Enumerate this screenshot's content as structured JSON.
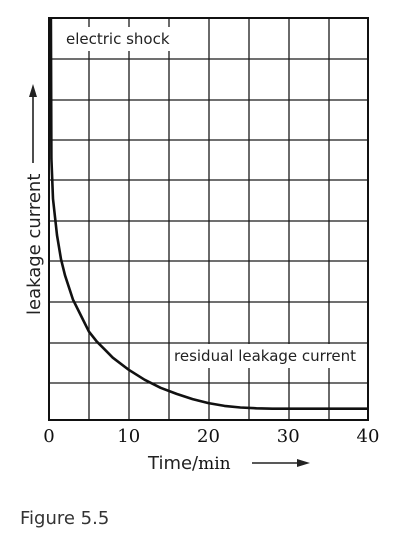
{
  "figure_caption": "Figure 5.5",
  "chart_data": {
    "type": "line",
    "xlabel": "Time/",
    "xlabel_unit": "min",
    "ylabel": "leakage current",
    "xlim": [
      0,
      40
    ],
    "x_ticks": [
      {
        "value": 0,
        "label": "0"
      },
      {
        "value": 10,
        "label": "10"
      },
      {
        "value": 20,
        "label": "20"
      },
      {
        "value": 30,
        "label": "30"
      },
      {
        "value": 40,
        "label": "40"
      }
    ],
    "grid": true,
    "annotations": {
      "top": "electric shock",
      "residual": "residual leakage current"
    },
    "series": [
      {
        "x": [
          0.3,
          0.5,
          1,
          1.5,
          2,
          3,
          4,
          5,
          6,
          7,
          8,
          10,
          12,
          14,
          16,
          18,
          20,
          22,
          24,
          26,
          28,
          30,
          32,
          34,
          36,
          38,
          40
        ],
        "y": [
          0.65,
          0.55,
          0.46,
          0.4,
          0.36,
          0.3,
          0.26,
          0.22,
          0.195,
          0.175,
          0.155,
          0.125,
          0.1,
          0.08,
          0.065,
          0.052,
          0.042,
          0.035,
          0.031,
          0.029,
          0.028,
          0.028,
          0.028,
          0.028,
          0.028,
          0.028,
          0.028
        ]
      }
    ]
  }
}
